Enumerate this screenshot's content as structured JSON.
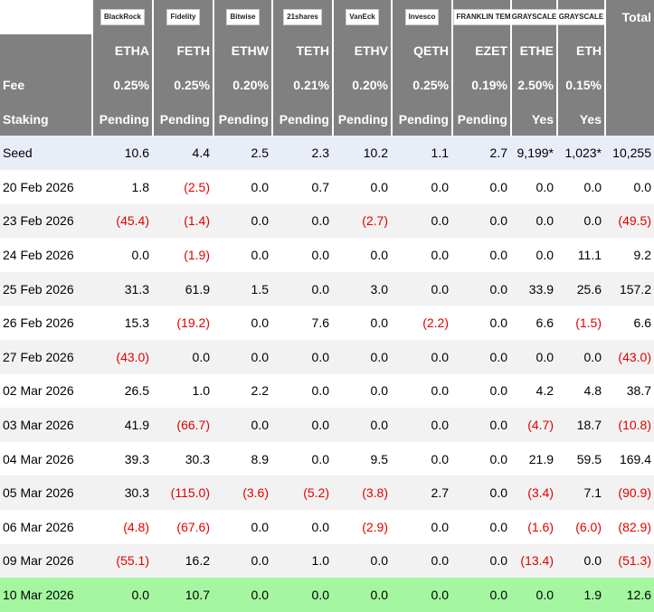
{
  "header": {
    "logos": [
      "BlackRock",
      "Fidelity",
      "Bitwise",
      "21shares",
      "VanEck",
      "Invesco",
      "FRANKLIN TEMPLETON",
      "GRAYSCALE",
      "GRAYSCALE"
    ],
    "total": "Total",
    "tickers": [
      "ETHA",
      "FETH",
      "ETHW",
      "TETH",
      "ETHV",
      "QETH",
      "EZET",
      "ETHE",
      "ETH"
    ],
    "fee_label": "Fee",
    "fees": [
      "0.25%",
      "0.25%",
      "0.20%",
      "0.21%",
      "0.20%",
      "0.25%",
      "0.19%",
      "2.50%",
      "0.15%"
    ],
    "staking_label": "Staking",
    "staking": [
      "Pending",
      "Pending",
      "Pending",
      "Pending",
      "Pending",
      "Pending",
      "Pending",
      "Yes",
      "Yes"
    ]
  },
  "table": {
    "rows": [
      {
        "label": "Seed",
        "cells": [
          "10.6",
          "4.4",
          "2.5",
          "2.3",
          "10.2",
          "1.1",
          "2.7",
          "9,199*",
          "1,023*",
          "10,255"
        ]
      },
      {
        "label": "20 Feb 2026",
        "cells": [
          "1.8",
          "(2.5)",
          "0.0",
          "0.7",
          "0.0",
          "0.0",
          "0.0",
          "0.0",
          "0.0",
          "0.0"
        ]
      },
      {
        "label": "23 Feb 2026",
        "cells": [
          "(45.4)",
          "(1.4)",
          "0.0",
          "0.0",
          "(2.7)",
          "0.0",
          "0.0",
          "0.0",
          "0.0",
          "(49.5)"
        ]
      },
      {
        "label": "24 Feb 2026",
        "cells": [
          "0.0",
          "(1.9)",
          "0.0",
          "0.0",
          "0.0",
          "0.0",
          "0.0",
          "0.0",
          "11.1",
          "9.2"
        ]
      },
      {
        "label": "25 Feb 2026",
        "cells": [
          "31.3",
          "61.9",
          "1.5",
          "0.0",
          "3.0",
          "0.0",
          "0.0",
          "33.9",
          "25.6",
          "157.2"
        ]
      },
      {
        "label": "26 Feb 2026",
        "cells": [
          "15.3",
          "(19.2)",
          "0.0",
          "7.6",
          "0.0",
          "(2.2)",
          "0.0",
          "6.6",
          "(1.5)",
          "6.6"
        ]
      },
      {
        "label": "27 Feb 2026",
        "cells": [
          "(43.0)",
          "0.0",
          "0.0",
          "0.0",
          "0.0",
          "0.0",
          "0.0",
          "0.0",
          "0.0",
          "(43.0)"
        ]
      },
      {
        "label": "02 Mar 2026",
        "cells": [
          "26.5",
          "1.0",
          "2.2",
          "0.0",
          "0.0",
          "0.0",
          "0.0",
          "4.2",
          "4.8",
          "38.7"
        ]
      },
      {
        "label": "03 Mar 2026",
        "cells": [
          "41.9",
          "(66.7)",
          "0.0",
          "0.0",
          "0.0",
          "0.0",
          "0.0",
          "(4.7)",
          "18.7",
          "(10.8)"
        ]
      },
      {
        "label": "04 Mar 2026",
        "cells": [
          "39.3",
          "30.3",
          "8.9",
          "0.0",
          "9.5",
          "0.0",
          "0.0",
          "21.9",
          "59.5",
          "169.4"
        ]
      },
      {
        "label": "05 Mar 2026",
        "cells": [
          "30.3",
          "(115.0)",
          "(3.6)",
          "(5.2)",
          "(3.8)",
          "2.7",
          "0.0",
          "(3.4)",
          "7.1",
          "(90.9)"
        ]
      },
      {
        "label": "06 Mar 2026",
        "cells": [
          "(4.8)",
          "(67.6)",
          "0.0",
          "0.0",
          "(2.9)",
          "0.0",
          "0.0",
          "(1.6)",
          "(6.0)",
          "(82.9)"
        ]
      },
      {
        "label": "09 Mar 2026",
        "cells": [
          "(55.1)",
          "16.2",
          "0.0",
          "1.0",
          "0.0",
          "0.0",
          "0.0",
          "(13.4)",
          "0.0",
          "(51.3)"
        ]
      },
      {
        "label": "10 Mar 2026",
        "cells": [
          "0.0",
          "10.7",
          "0.0",
          "0.0",
          "0.0",
          "0.0",
          "0.0",
          "0.0",
          "1.9",
          "12.6"
        ]
      }
    ]
  }
}
